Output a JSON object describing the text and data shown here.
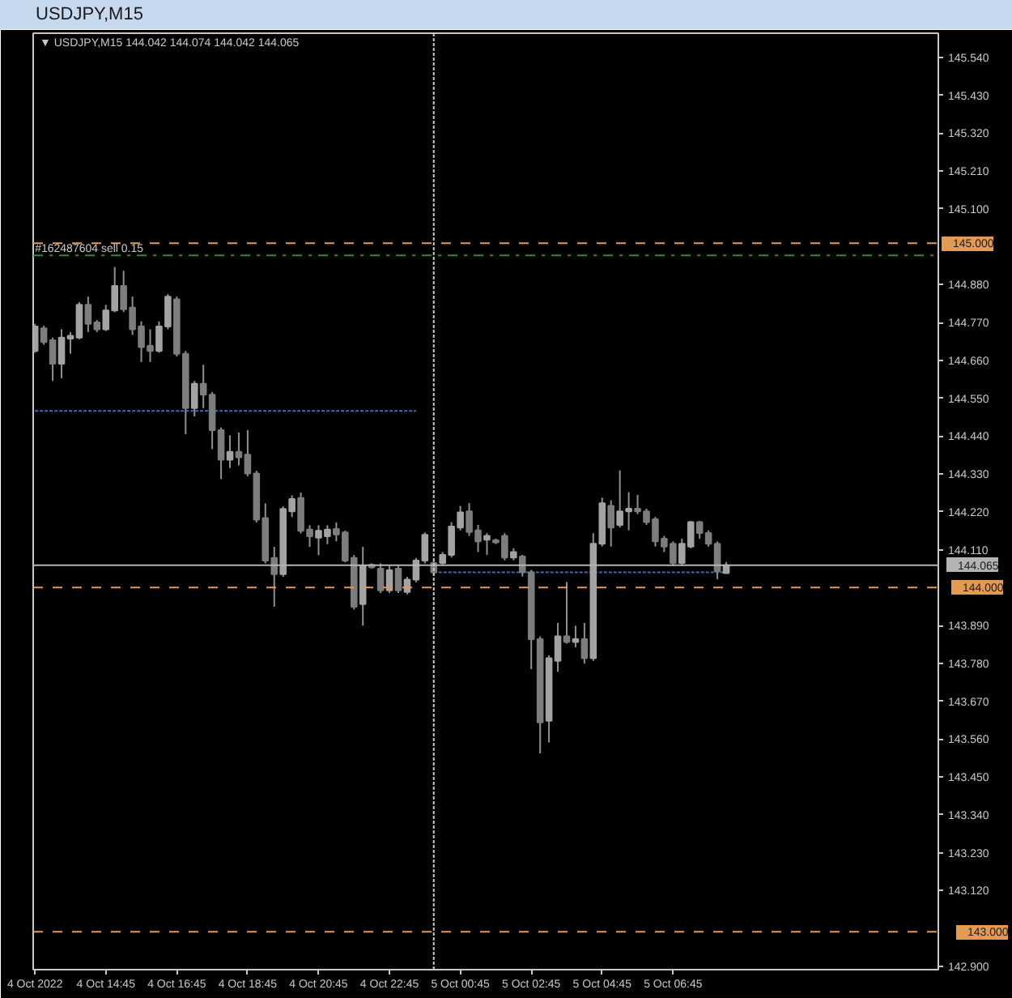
{
  "chart_data": {
    "type": "candlestick",
    "title": "USDJPY,M15",
    "subtitle": "▼ USDJPY,M15  144.042 144.074 144.042 144.065",
    "color": "#8f8f8f",
    "x": [
      "2022-10-04T12:45",
      "2022-10-04T13:00",
      "2022-10-04T13:15",
      "2022-10-04T13:30",
      "2022-10-04T13:45",
      "2022-10-04T14:00",
      "2022-10-04T14:15",
      "2022-10-04T14:30",
      "2022-10-04T14:45",
      "2022-10-04T15:00",
      "2022-10-04T15:15",
      "2022-10-04T15:30",
      "2022-10-04T15:45",
      "2022-10-04T16:00",
      "2022-10-04T16:15",
      "2022-10-04T16:30",
      "2022-10-04T16:45",
      "2022-10-04T17:00",
      "2022-10-04T17:15",
      "2022-10-04T17:30",
      "2022-10-04T17:45",
      "2022-10-04T18:00",
      "2022-10-04T18:15",
      "2022-10-04T18:30",
      "2022-10-04T18:45",
      "2022-10-04T19:00",
      "2022-10-04T19:15",
      "2022-10-04T19:30",
      "2022-10-04T19:45",
      "2022-10-04T20:00",
      "2022-10-04T20:15",
      "2022-10-04T20:30",
      "2022-10-04T20:45",
      "2022-10-04T21:00",
      "2022-10-04T21:15",
      "2022-10-04T21:30",
      "2022-10-04T21:45",
      "2022-10-04T22:00",
      "2022-10-04T22:15",
      "2022-10-04T22:30",
      "2022-10-04T22:45",
      "2022-10-04T23:00",
      "2022-10-04T23:15",
      "2022-10-04T23:30",
      "2022-10-04T23:45",
      "2022-10-05T00:00",
      "2022-10-05T00:15",
      "2022-10-05T00:30",
      "2022-10-05T00:45",
      "2022-10-05T01:00",
      "2022-10-05T01:15",
      "2022-10-05T01:30",
      "2022-10-05T01:45",
      "2022-10-05T02:00",
      "2022-10-05T02:15",
      "2022-10-05T02:30",
      "2022-10-05T02:45",
      "2022-10-05T03:00",
      "2022-10-05T03:15",
      "2022-10-05T03:30",
      "2022-10-05T03:45",
      "2022-10-05T04:00",
      "2022-10-05T04:15",
      "2022-10-05T04:30",
      "2022-10-05T04:45",
      "2022-10-05T05:00",
      "2022-10-05T05:15",
      "2022-10-05T05:30",
      "2022-10-05T05:45",
      "2022-10-05T06:00",
      "2022-10-05T06:15",
      "2022-10-05T06:30",
      "2022-10-05T06:45",
      "2022-10-05T07:00",
      "2022-10-05T07:15",
      "2022-10-05T07:30",
      "2022-10-05T07:45",
      "2022-10-05T08:00",
      "2022-10-05T08:15"
    ],
    "ohlc": [
      [
        144.687,
        144.766,
        144.682,
        144.758
      ],
      [
        144.753,
        144.76,
        144.705,
        144.713
      ],
      [
        144.718,
        144.726,
        144.6,
        144.65
      ],
      [
        144.65,
        144.75,
        144.608,
        144.726
      ],
      [
        144.723,
        144.742,
        144.679,
        144.731
      ],
      [
        144.726,
        144.829,
        144.721,
        144.821
      ],
      [
        144.821,
        144.845,
        144.742,
        144.766
      ],
      [
        144.77,
        144.777,
        144.742,
        144.75
      ],
      [
        144.75,
        144.821,
        144.745,
        144.805
      ],
      [
        144.805,
        144.931,
        144.8,
        144.876
      ],
      [
        144.876,
        144.92,
        144.8,
        144.808
      ],
      [
        144.813,
        144.845,
        144.734,
        144.75
      ],
      [
        144.758,
        144.773,
        144.655,
        144.698
      ],
      [
        144.702,
        144.75,
        144.655,
        144.687
      ],
      [
        144.687,
        144.773,
        144.682,
        144.758
      ],
      [
        144.758,
        144.852,
        144.75,
        144.845
      ],
      [
        144.837,
        144.845,
        144.671,
        144.679
      ],
      [
        144.679,
        144.687,
        144.445,
        144.521
      ],
      [
        144.521,
        144.6,
        144.497,
        144.592
      ],
      [
        144.592,
        144.647,
        144.521,
        144.56
      ],
      [
        144.56,
        144.568,
        144.402,
        144.457
      ],
      [
        144.457,
        144.465,
        144.315,
        144.371
      ],
      [
        144.371,
        144.442,
        144.347,
        144.394
      ],
      [
        144.394,
        144.45,
        144.355,
        144.378
      ],
      [
        144.386,
        144.457,
        144.323,
        144.331
      ],
      [
        144.331,
        144.339,
        144.189,
        144.197
      ],
      [
        144.202,
        144.244,
        144.07,
        144.078
      ],
      [
        144.086,
        144.118,
        143.944,
        144.039
      ],
      [
        144.039,
        144.236,
        144.031,
        144.228
      ],
      [
        144.221,
        144.268,
        144.205,
        144.257
      ],
      [
        144.26,
        144.276,
        144.157,
        144.165
      ],
      [
        144.168,
        144.181,
        144.118,
        144.149
      ],
      [
        144.145,
        144.181,
        144.094,
        144.165
      ],
      [
        144.149,
        144.181,
        144.126,
        144.168
      ],
      [
        144.17,
        144.189,
        144.134,
        144.154
      ],
      [
        144.16,
        144.165,
        144.073,
        144.078
      ],
      [
        144.086,
        144.094,
        143.936,
        143.944
      ],
      [
        143.952,
        144.118,
        143.889,
        144.063
      ],
      [
        144.066,
        144.07,
        144.055,
        144.059
      ],
      [
        144.055,
        144.07,
        143.984,
        143.992
      ],
      [
        143.992,
        144.063,
        143.984,
        144.05
      ],
      [
        144.055,
        144.063,
        143.984,
        143.992
      ],
      [
        143.987,
        144.031,
        143.98,
        144.023
      ],
      [
        144.023,
        144.086,
        144.015,
        144.078
      ],
      [
        144.078,
        144.16,
        144.07,
        144.153
      ],
      [
        144.071,
        144.079,
        144.035,
        144.044
      ],
      [
        144.071,
        144.103,
        144.066,
        144.095
      ],
      [
        144.095,
        144.19,
        144.087,
        144.177
      ],
      [
        144.174,
        144.237,
        144.166,
        144.218
      ],
      [
        144.221,
        144.245,
        144.15,
        144.161
      ],
      [
        144.166,
        144.182,
        144.103,
        144.134
      ],
      [
        144.139,
        144.158,
        144.095,
        144.15
      ],
      [
        144.137,
        144.142,
        144.126,
        144.131
      ],
      [
        144.15,
        144.158,
        144.079,
        144.087
      ],
      [
        144.087,
        144.114,
        144.079,
        144.103
      ],
      [
        144.09,
        144.095,
        144.032,
        144.044
      ],
      [
        144.044,
        144.051,
        143.763,
        143.85
      ],
      [
        143.85,
        143.858,
        143.518,
        143.608
      ],
      [
        143.613,
        143.803,
        143.55,
        143.795
      ],
      [
        143.787,
        143.897,
        143.755,
        143.858
      ],
      [
        143.858,
        144.016,
        143.837,
        143.842
      ],
      [
        143.842,
        143.889,
        143.826,
        143.85
      ],
      [
        143.85,
        143.897,
        143.779,
        143.795
      ],
      [
        143.795,
        144.158,
        143.787,
        144.127
      ],
      [
        144.127,
        144.261,
        144.119,
        144.245
      ],
      [
        144.237,
        144.253,
        144.119,
        144.174
      ],
      [
        144.182,
        144.34,
        144.174,
        144.221
      ],
      [
        144.221,
        144.277,
        144.166,
        144.229
      ],
      [
        144.229,
        144.269,
        144.213,
        144.221
      ],
      [
        144.221,
        144.229,
        144.182,
        144.19
      ],
      [
        144.198,
        144.205,
        144.119,
        144.134
      ],
      [
        144.142,
        144.15,
        144.103,
        144.119
      ],
      [
        144.127,
        144.134,
        144.063,
        144.071
      ],
      [
        144.071,
        144.142,
        144.063,
        144.127
      ],
      [
        144.119,
        144.193,
        144.114,
        144.19
      ],
      [
        144.19,
        144.193,
        144.142,
        144.158
      ],
      [
        144.158,
        144.166,
        144.119,
        144.127
      ],
      [
        144.127,
        144.134,
        144.024,
        144.047
      ],
      [
        144.042,
        144.074,
        144.042,
        144.065
      ]
    ],
    "colors": [
      "#a3a3a3",
      "#7d7d7d",
      "#7d7d7d",
      "#a3a3a3",
      "#a3a3a3",
      "#a3a3a3",
      "#7d7d7d",
      "#7d7d7d",
      "#a3a3a3",
      "#a3a3a3",
      "#7d7d7d",
      "#7d7d7d",
      "#7d7d7d",
      "#7d7d7d",
      "#a3a3a3",
      "#a3a3a3",
      "#7d7d7d",
      "#7d7d7d",
      "#a3a3a3",
      "#7d7d7d",
      "#7d7d7d",
      "#7d7d7d",
      "#a3a3a3",
      "#7d7d7d",
      "#7d7d7d",
      "#7d7d7d",
      "#7d7d7d",
      "#7d7d7d",
      "#a3a3a3",
      "#a3a3a3",
      "#7d7d7d",
      "#7d7d7d",
      "#a3a3a3",
      "#a3a3a3",
      "#7d7d7d",
      "#7d7d7d",
      "#7d7d7d",
      "#a3a3a3",
      "#7d7d7d",
      "#7d7d7d",
      "#a3a3a3",
      "#7d7d7d",
      "#a3a3a3",
      "#a3a3a3",
      "#a3a3a3",
      "#7d7d7d",
      "#a3a3a3",
      "#a3a3a3",
      "#a3a3a3",
      "#7d7d7d",
      "#7d7d7d",
      "#a3a3a3",
      "#7d7d7d",
      "#7d7d7d",
      "#a3a3a3",
      "#7d7d7d",
      "#7d7d7d",
      "#7d7d7d",
      "#a3a3a3",
      "#a3a3a3",
      "#7d7d7d",
      "#a3a3a3",
      "#7d7d7d",
      "#a3a3a3",
      "#a3a3a3",
      "#7d7d7d",
      "#a3a3a3",
      "#a3a3a3",
      "#7d7d7d",
      "#7d7d7d",
      "#7d7d7d",
      "#7d7d7d",
      "#7d7d7d",
      "#a3a3a3",
      "#a3a3a3",
      "#7d7d7d",
      "#7d7d7d",
      "#7d7d7d",
      "#a3a3a3"
    ],
    "series": [
      {
        "type": "line",
        "color": "#3a6db5",
        "line_style": "dotted",
        "x": [
          "2022-10-04T12:45",
          "2022-10-04T23:30"
        ],
        "values": [
          144.513,
          144.513
        ]
      },
      {
        "type": "line",
        "color": "#3a6db5",
        "line_style": "dotted",
        "x": [
          "2022-10-05T00:00",
          "2022-10-05T08:15"
        ],
        "values": [
          144.044,
          144.044
        ]
      }
    ],
    "xlim": [
      "2022-10-04T12:42",
      "2022-10-05T14:14"
    ],
    "ylim": [
      142.89,
      145.61
    ],
    "xticks": [
      {
        "value": "2022-10-04T12:45",
        "label": "4 Oct 2022"
      },
      {
        "value": "2022-10-04T14:45",
        "label": "4 Oct 14:45"
      },
      {
        "value": "2022-10-04T16:45",
        "label": "4 Oct 16:45"
      },
      {
        "value": "2022-10-04T18:45",
        "label": "4 Oct 18:45"
      },
      {
        "value": "2022-10-04T20:45",
        "label": "4 Oct 20:45"
      },
      {
        "value": "2022-10-04T22:45",
        "label": "4 Oct 22:45"
      },
      {
        "value": "2022-10-05T00:45",
        "label": "5 Oct 00:45"
      },
      {
        "value": "2022-10-05T02:45",
        "label": "5 Oct 02:45"
      },
      {
        "value": "2022-10-05T04:45",
        "label": "5 Oct 04:45"
      },
      {
        "value": "2022-10-05T06:45",
        "label": "5 Oct 06:45"
      }
    ],
    "yticks": [
      {
        "value": 145.54,
        "label": "145.540"
      },
      {
        "value": 145.43,
        "label": "145.430"
      },
      {
        "value": 145.32,
        "label": "145.320"
      },
      {
        "value": 145.21,
        "label": "145.210"
      },
      {
        "value": 145.1,
        "label": "145.100"
      },
      {
        "value": 144.88,
        "label": "144.880"
      },
      {
        "value": 144.77,
        "label": "144.770"
      },
      {
        "value": 144.66,
        "label": "144.660"
      },
      {
        "value": 144.55,
        "label": "144.550"
      },
      {
        "value": 144.44,
        "label": "144.440"
      },
      {
        "value": 144.33,
        "label": "144.330"
      },
      {
        "value": 144.22,
        "label": "144.220"
      },
      {
        "value": 144.11,
        "label": "144.110"
      },
      {
        "value": 143.89,
        "label": "143.890"
      },
      {
        "value": 143.78,
        "label": "143.780"
      },
      {
        "value": 143.67,
        "label": "143.670"
      },
      {
        "value": 143.56,
        "label": "143.560"
      },
      {
        "value": 143.45,
        "label": "143.450"
      },
      {
        "value": 143.34,
        "label": "143.340"
      },
      {
        "value": 143.23,
        "label": "143.230"
      },
      {
        "value": 143.12,
        "label": "143.120"
      },
      {
        "value": 142.9,
        "label": "142.900"
      }
    ],
    "ref_lines": [
      {
        "axis": "y",
        "value": 145.0,
        "label": "145.000",
        "color": "#e39a55",
        "line_style": "dashed"
      },
      {
        "axis": "y",
        "value": 144.965,
        "color": "#2e8b3e",
        "line_style": "dashdot"
      },
      {
        "axis": "y",
        "value": 144.065,
        "label": "144.065",
        "color": "#b4b4b4",
        "line_style": "solid"
      },
      {
        "axis": "y",
        "value": 144.0,
        "label": "144.000",
        "color": "#e39a55",
        "line_style": "dashed"
      },
      {
        "axis": "y",
        "value": 143.0,
        "label": "143.000",
        "color": "#e39a55",
        "line_style": "dashed"
      },
      {
        "axis": "x",
        "value": "2022-10-05T00:00",
        "color": "#c8c8c8",
        "line_style": "dotted"
      }
    ],
    "annotations": [
      {
        "text": "#162487604 sell 0.15",
        "x": "2022-10-04T12:45",
        "y": 144.965
      }
    ]
  }
}
